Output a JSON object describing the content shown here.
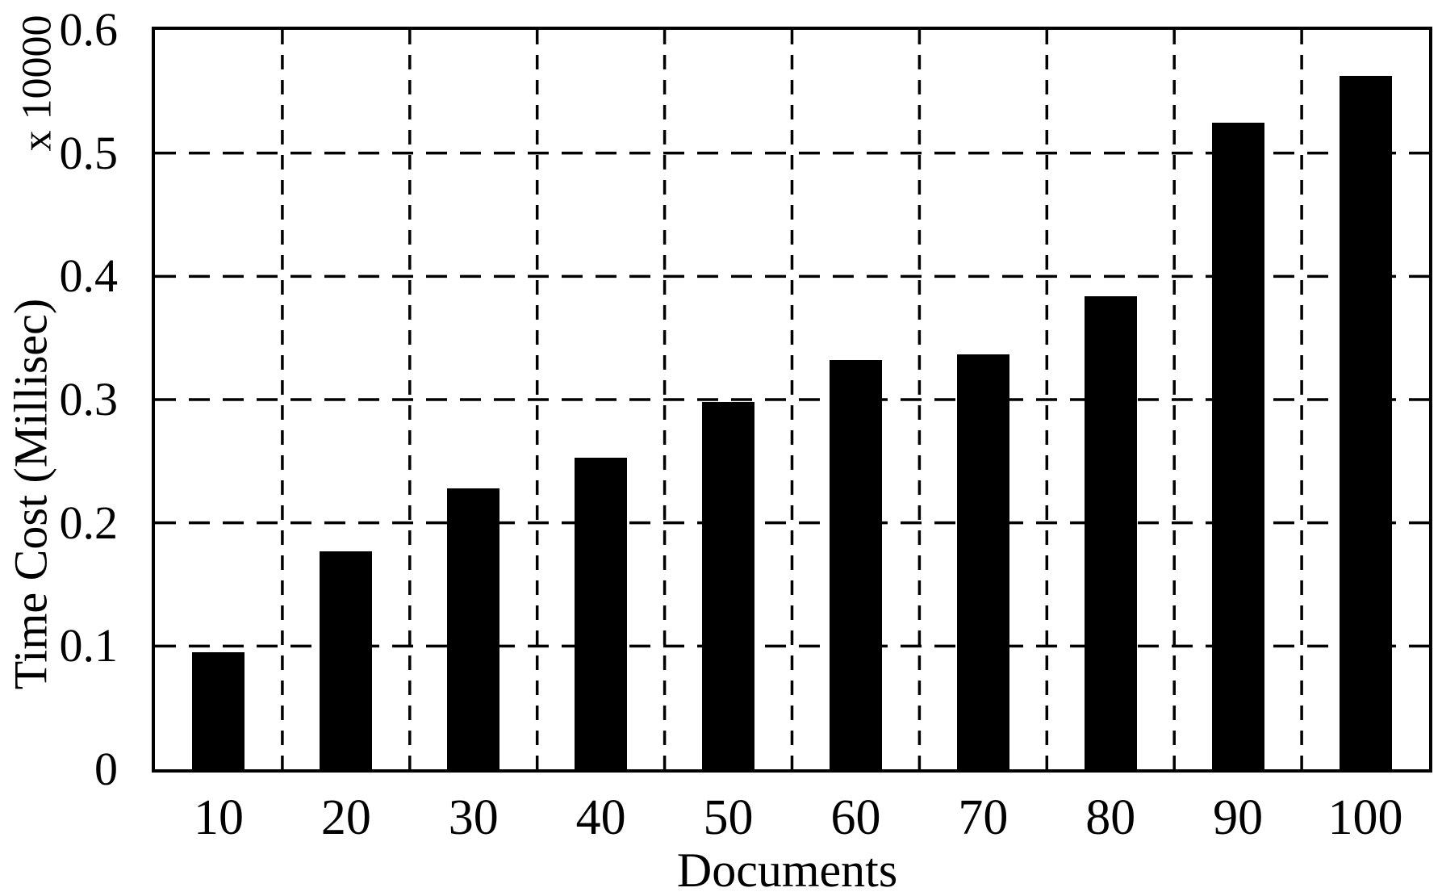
{
  "chart_data": {
    "type": "bar",
    "title": "",
    "xlabel": "Documents",
    "ylabel": "Time Cost (Millisec)",
    "y_unit_multiplier": "x 10000",
    "categories": [
      "10",
      "20",
      "30",
      "40",
      "50",
      "60",
      "70",
      "80",
      "90",
      "100"
    ],
    "values": [
      0.095,
      0.177,
      0.228,
      0.253,
      0.298,
      0.332,
      0.337,
      0.384,
      0.525,
      0.563
    ],
    "ylim": [
      0,
      0.6
    ],
    "yticks": [
      0,
      0.1,
      0.2,
      0.3,
      0.4,
      0.5,
      0.6
    ],
    "ytick_labels": [
      "0",
      "0.1",
      "0.2",
      "0.3",
      "0.4",
      "0.5",
      "0.6"
    ],
    "bar_color": "#000000",
    "background_color": "#ffffff",
    "grid": {
      "horizontal": "dashed",
      "vertical": "dashed",
      "frame": "solid"
    },
    "legend": null
  }
}
